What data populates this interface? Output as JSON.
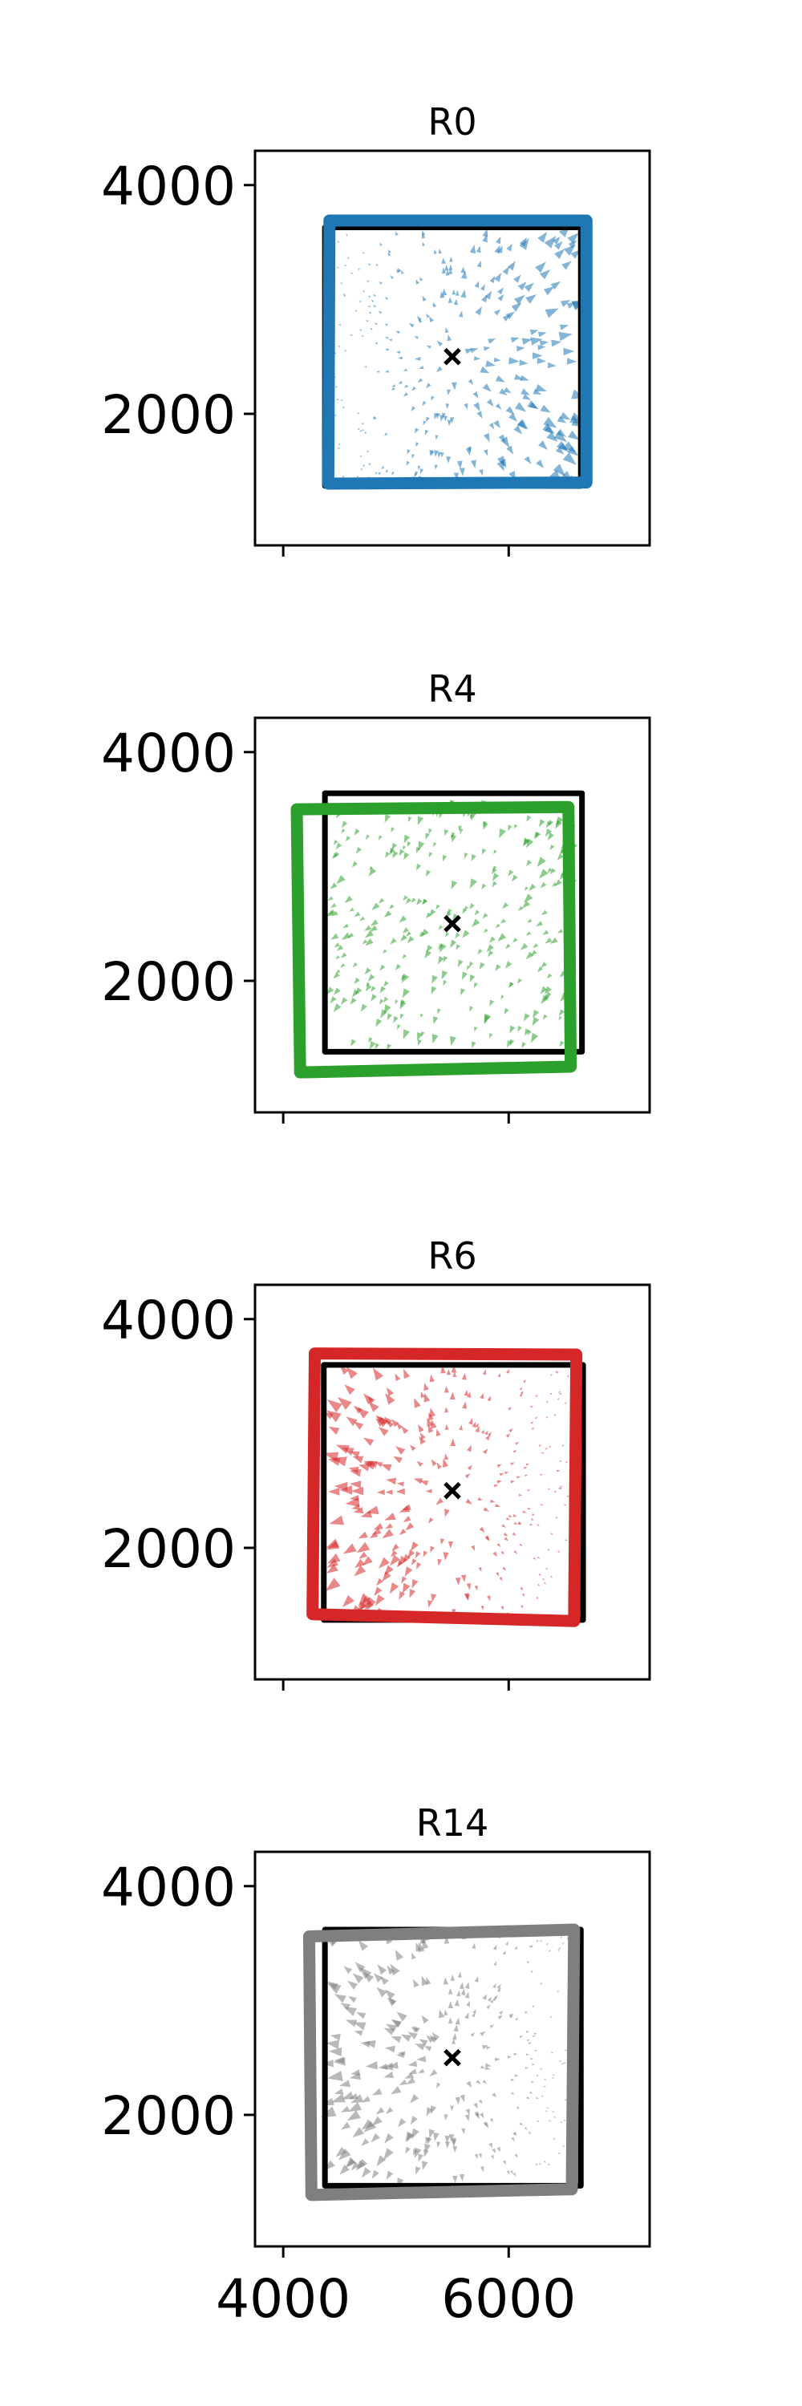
{
  "chart_data": [
    {
      "type": "scatter",
      "title": "R0",
      "color": "#1f77b4",
      "xlim": [
        3750,
        7250
      ],
      "ylim": [
        850,
        4300
      ],
      "x_ticks": [
        4000,
        6000
      ],
      "x_tick_labels": [
        "",
        ""
      ],
      "y_ticks": [
        2000,
        4000
      ],
      "y_tick_labels": [
        "2000",
        "4000"
      ],
      "center": [
        5500,
        2500
      ],
      "reference_outline": [
        [
          4370,
          1370
        ],
        [
          6640,
          1370
        ],
        [
          6640,
          3630
        ],
        [
          4370,
          3630
        ]
      ],
      "fitted_outline": [
        [
          4400,
          1390
        ],
        [
          6690,
          1400
        ],
        [
          6690,
          3690
        ],
        [
          4410,
          3690
        ]
      ],
      "shift_pattern": "expand-right",
      "grid": false
    },
    {
      "type": "scatter",
      "title": "R4",
      "color": "#2ca02c",
      "xlim": [
        3750,
        7250
      ],
      "ylim": [
        850,
        4300
      ],
      "x_ticks": [
        4000,
        6000
      ],
      "x_tick_labels": [
        "",
        ""
      ],
      "y_ticks": [
        2000,
        4000
      ],
      "y_tick_labels": [
        "2000",
        "4000"
      ],
      "center": [
        5500,
        2500
      ],
      "reference_outline": [
        [
          4370,
          1380
        ],
        [
          6650,
          1380
        ],
        [
          6650,
          3640
        ],
        [
          4370,
          3640
        ]
      ],
      "fitted_outline": [
        [
          4150,
          1200
        ],
        [
          6550,
          1250
        ],
        [
          6530,
          3520
        ],
        [
          4120,
          3500
        ]
      ],
      "shift_pattern": "shift-down-left",
      "grid": false
    },
    {
      "type": "scatter",
      "title": "R6",
      "color": "#d62728",
      "xlim": [
        3750,
        7250
      ],
      "ylim": [
        850,
        4300
      ],
      "x_ticks": [
        4000,
        6000
      ],
      "x_tick_labels": [
        "",
        ""
      ],
      "y_ticks": [
        2000,
        4000
      ],
      "y_tick_labels": [
        "2000",
        "4000"
      ],
      "center": [
        5500,
        2500
      ],
      "reference_outline": [
        [
          4360,
          1370
        ],
        [
          6660,
          1370
        ],
        [
          6660,
          3600
        ],
        [
          4360,
          3600
        ]
      ],
      "fitted_outline": [
        [
          4260,
          1420
        ],
        [
          6580,
          1360
        ],
        [
          6600,
          3690
        ],
        [
          4280,
          3700
        ]
      ],
      "shift_pattern": "expand-left",
      "grid": false
    },
    {
      "type": "scatter",
      "title": "R14",
      "color": "#7f7f7f",
      "xlim": [
        3750,
        7250
      ],
      "ylim": [
        850,
        4300
      ],
      "x_ticks": [
        4000,
        6000
      ],
      "x_tick_labels": [
        "4000",
        "6000"
      ],
      "y_ticks": [
        2000,
        4000
      ],
      "y_tick_labels": [
        "2000",
        "4000"
      ],
      "center": [
        5500,
        2500
      ],
      "reference_outline": [
        [
          4370,
          1380
        ],
        [
          6640,
          1380
        ],
        [
          6640,
          3620
        ],
        [
          4370,
          3620
        ]
      ],
      "fitted_outline": [
        [
          4250,
          1300
        ],
        [
          6560,
          1350
        ],
        [
          6580,
          3620
        ],
        [
          4230,
          3560
        ]
      ],
      "shift_pattern": "expand-left",
      "grid": false
    }
  ]
}
